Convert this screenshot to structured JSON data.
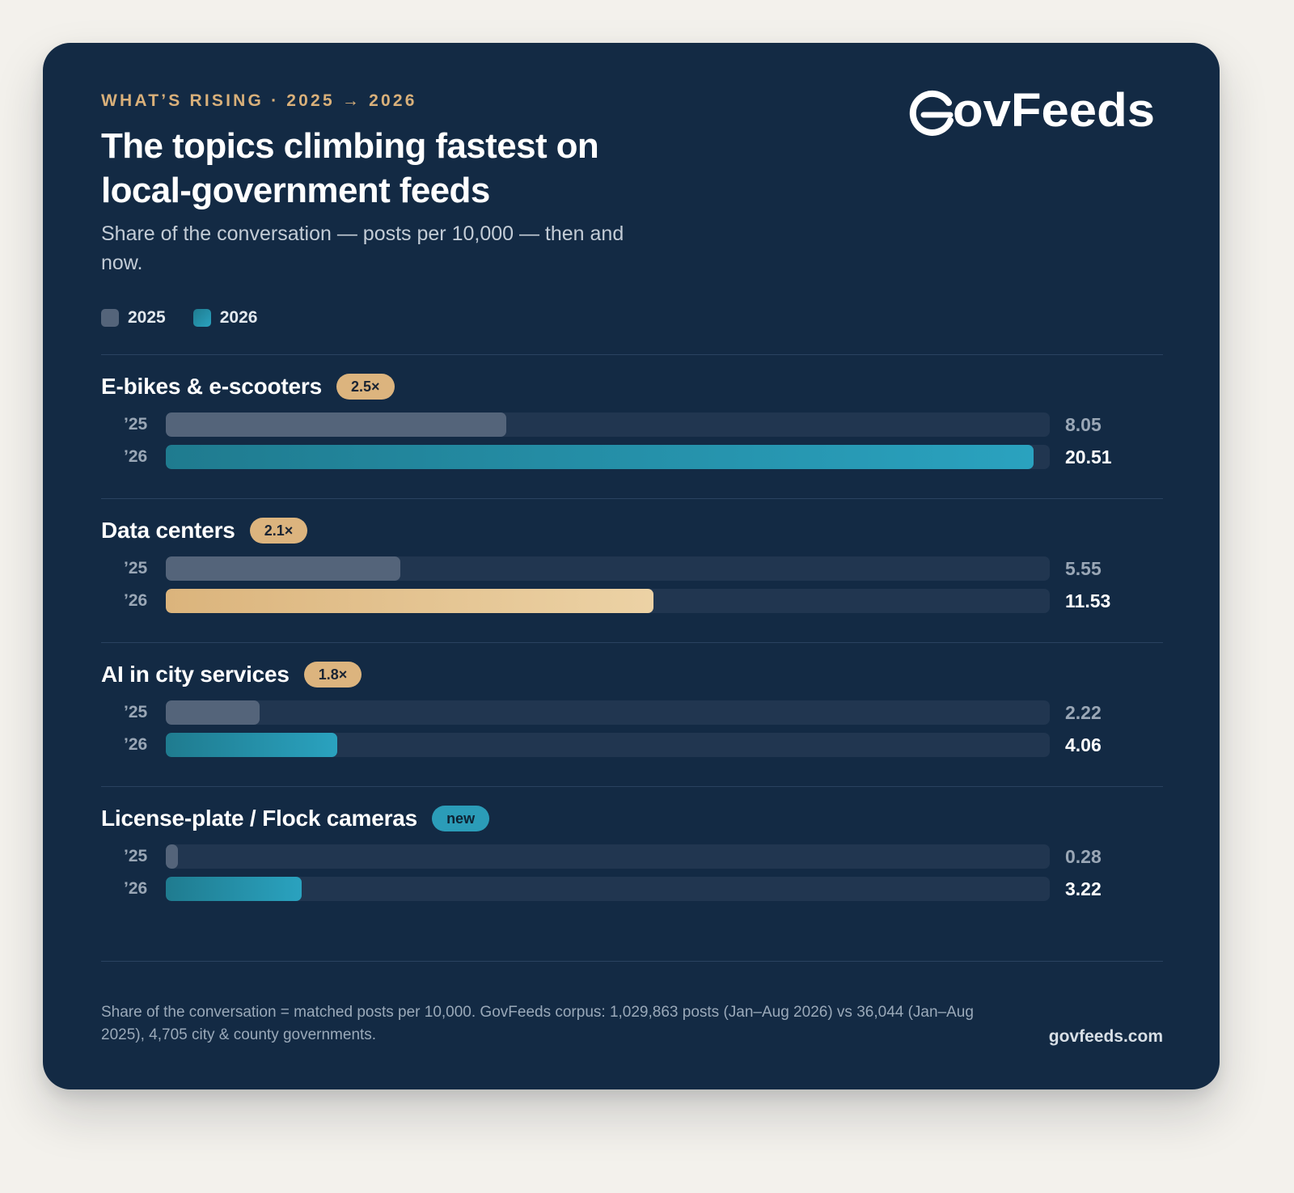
{
  "eyebrow": "WHAT’S RISING · 2025 → 2026",
  "title": "The topics climbing fastest on local-government feeds",
  "subtitle": "Share of the conversation — posts per 10,000 — then and now.",
  "logo_text": "GovFeeds",
  "colors": {
    "card_bg": "#132a44",
    "accent_gold": "#dcb47e",
    "accent_teal": "#2aa2bf",
    "bar_2025": "#54647a",
    "track": "#213650"
  },
  "legend": [
    {
      "label": "2025",
      "color": "#54647a"
    },
    {
      "label": "2026",
      "color": "#2aa2bf"
    }
  ],
  "chart_data": {
    "type": "bar",
    "orientation": "horizontal",
    "scale_max": 20.9,
    "series_names": [
      "2025",
      "2026"
    ],
    "year_labels": [
      "’25",
      "’26"
    ],
    "topics": [
      {
        "name": "E-bikes & e-scooters",
        "badge": "2.5×",
        "badge_color": "gold",
        "v2025": 8.05,
        "v2026": 20.51,
        "label2025": "8.05",
        "label2026": "20.51",
        "fill2026": "teal"
      },
      {
        "name": "Data centers",
        "badge": "2.1×",
        "badge_color": "gold",
        "v2025": 5.55,
        "v2026": 11.53,
        "label2025": "5.55",
        "label2026": "11.53",
        "fill2026": "gold"
      },
      {
        "name": "AI in city services",
        "badge": "1.8×",
        "badge_color": "gold",
        "v2025": 2.22,
        "v2026": 4.06,
        "label2025": "2.22",
        "label2026": "4.06",
        "fill2026": "teal"
      },
      {
        "name": "License-plate / Flock cameras",
        "badge": "new",
        "badge_color": "teal",
        "v2025": 0.28,
        "v2026": 3.22,
        "label2025": "0.28",
        "label2026": "3.22",
        "fill2026": "teal"
      }
    ]
  },
  "footnote": "Share of the conversation = matched posts per 10,000. GovFeeds corpus: 1,029,863 posts (Jan–Aug 2026) vs 36,044 (Jan–Aug 2025), 4,705 city & county governments.",
  "site": "govfeeds.com"
}
